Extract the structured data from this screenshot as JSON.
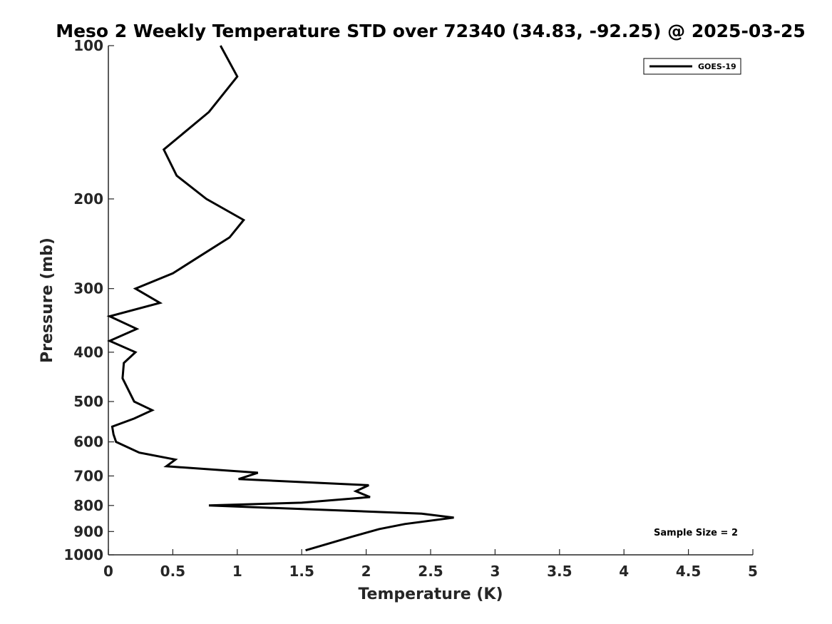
{
  "chart_data": {
    "type": "line",
    "title": "Meso 2 Weekly Temperature STD over 72340 (34.83, -92.25) @ 2025-03-25",
    "xlabel": "Temperature (K)",
    "ylabel": "Pressure (mb)",
    "xlim": [
      0,
      5
    ],
    "ylim": [
      100,
      1000
    ],
    "y_scale": "log",
    "y_reversed": true,
    "x_ticks": [
      0,
      0.5,
      1,
      1.5,
      2,
      2.5,
      3,
      3.5,
      4,
      4.5,
      5
    ],
    "x_tick_labels": [
      "0",
      "0.5",
      "1",
      "1.5",
      "2",
      "2.5",
      "3",
      "3.5",
      "4",
      "4.5",
      "5"
    ],
    "y_ticks": [
      100,
      200,
      300,
      400,
      500,
      600,
      700,
      800,
      900,
      1000
    ],
    "y_tick_labels": [
      "100",
      "200",
      "300",
      "400",
      "500",
      "600",
      "700",
      "800",
      "900",
      "1000"
    ],
    "grid": false,
    "legend_position": "top-right",
    "series": [
      {
        "name": "GOES-19",
        "color": "#000000",
        "x": [
          0.87,
          1.0,
          0.78,
          0.43,
          0.53,
          0.76,
          1.05,
          0.94,
          0.7,
          0.5,
          0.21,
          0.4,
          0.01,
          0.22,
          0.01,
          0.21,
          0.12,
          0.11,
          0.2,
          0.34,
          0.2,
          0.03,
          0.04,
          0.06,
          0.24,
          0.52,
          0.45,
          1.16,
          1.01,
          2.02,
          1.92,
          2.03,
          1.5,
          0.78,
          2.43,
          2.68,
          2.3,
          2.1,
          1.9,
          1.53
        ],
        "y": [
          100,
          115,
          135,
          160,
          180,
          200,
          220,
          238,
          260,
          280,
          300,
          320,
          340,
          360,
          380,
          400,
          420,
          450,
          500,
          520,
          540,
          560,
          580,
          600,
          630,
          650,
          670,
          690,
          710,
          730,
          750,
          770,
          790,
          800,
          830,
          845,
          870,
          890,
          920,
          980
        ]
      }
    ],
    "annotations": [
      "Sample Size = 2"
    ]
  }
}
